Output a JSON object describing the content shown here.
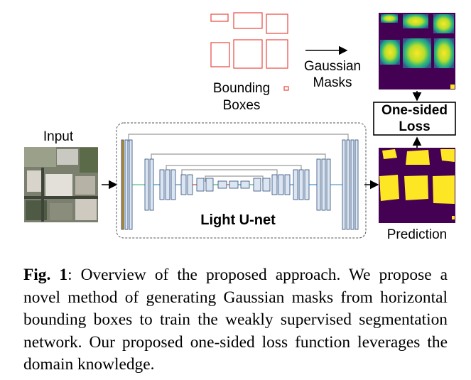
{
  "figure": {
    "labels": {
      "input": "Input",
      "bounding_boxes_line1": "Bounding",
      "bounding_boxes_line2": "Boxes",
      "gaussian_masks_line1": "Gaussian",
      "gaussian_masks_line2": "Masks",
      "loss_line1": "One-sided",
      "loss_line2": "Loss",
      "network": "Light U-net",
      "prediction": "Prediction"
    },
    "colors": {
      "box_outline": "#e8473f",
      "mask_background": "#440154",
      "mask_teal": "#21918c",
      "mask_green": "#5ec962",
      "mask_yellow": "#fde725",
      "unet_block": "#dce6f2",
      "unet_block_border": "#2b4a78",
      "unet_accent": "#b8860b"
    }
  },
  "caption": {
    "label": "Fig. 1",
    "text": ":  Overview of the proposed approach.  We propose a novel method of generating Gaussian masks from horizontal bounding boxes to train the weakly supervised segmentation network. Our proposed one-sided loss function leverages the domain knowledge."
  }
}
